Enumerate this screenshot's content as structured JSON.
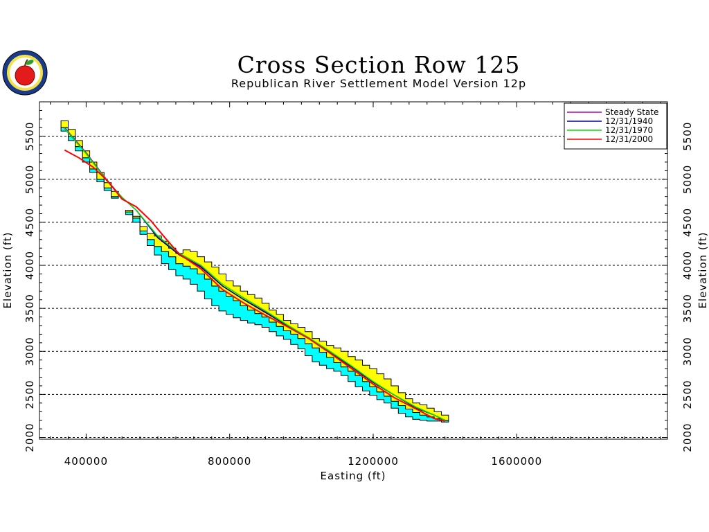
{
  "chart_data": {
    "type": "line",
    "title": "Cross Section Row 125",
    "subtitle": "Republican River Settlement Model Version 12p",
    "xlabel": "Easting (ft)",
    "ylabel": "Elevation (ft)",
    "xlim": [
      270000,
      2020000
    ],
    "ylim": [
      1980000,
      5900000
    ],
    "x_ticks": [
      400000,
      800000,
      1200000,
      1600000
    ],
    "y_ticks": [
      2000,
      2500,
      3000,
      3500,
      4000,
      4500,
      5000,
      5500
    ],
    "grid": "horizontal-dashed",
    "legend_position": "top-right",
    "colors": {
      "layer_top": "#ffff00",
      "layer_bottom": "#00ffff",
      "outline": "#000000"
    },
    "layers": {
      "x": [
        340000,
        360000,
        380000,
        400000,
        420000,
        440000,
        460000,
        480000,
        500000,
        520000,
        540000,
        560000,
        580000,
        600000,
        620000,
        640000,
        660000,
        680000,
        700000,
        720000,
        740000,
        760000,
        780000,
        800000,
        820000,
        840000,
        860000,
        880000,
        900000,
        920000,
        940000,
        960000,
        980000,
        1000000,
        1020000,
        1040000,
        1060000,
        1080000,
        1100000,
        1120000,
        1140000,
        1160000,
        1180000,
        1200000,
        1220000,
        1240000,
        1260000,
        1280000,
        1300000,
        1320000,
        1340000,
        1360000,
        1380000,
        1400000
      ],
      "top": [
        5680,
        5580,
        5450,
        5330,
        5200,
        5080,
        4960,
        4860,
        null,
        4640,
        4570,
        4450,
        4370,
        4340,
        4280,
        4200,
        4140,
        4180,
        4160,
        4100,
        4040,
        3980,
        3900,
        3820,
        3760,
        3700,
        3660,
        3620,
        3560,
        3480,
        3430,
        3360,
        3320,
        3280,
        3230,
        3150,
        3120,
        3070,
        3040,
        3000,
        2940,
        2900,
        2840,
        2800,
        2740,
        2680,
        2600,
        2520,
        2450,
        2400,
        2380,
        2340,
        2300,
        2260
      ],
      "mid": [
        5600,
        5500,
        5380,
        5250,
        5120,
        5000,
        4900,
        4800,
        null,
        4620,
        4550,
        4400,
        4300,
        4220,
        4160,
        4100,
        4020,
        3990,
        3960,
        3900,
        3840,
        3760,
        3700,
        3640,
        3590,
        3530,
        3480,
        3440,
        3400,
        3340,
        3290,
        3240,
        3200,
        3150,
        3090,
        3040,
        2990,
        2930,
        2870,
        2820,
        2770,
        2720,
        2650,
        2590,
        2530,
        2480,
        2420,
        2370,
        2330,
        2290,
        2260,
        2240,
        2220,
        2200
      ],
      "bottom": [
        5560,
        5450,
        5330,
        5200,
        5080,
        4970,
        4870,
        4780,
        null,
        4590,
        4500,
        4360,
        4230,
        4120,
        4020,
        3950,
        3880,
        3840,
        3780,
        3700,
        3610,
        3530,
        3470,
        3430,
        3390,
        3360,
        3330,
        3310,
        3280,
        3230,
        3180,
        3140,
        3080,
        3030,
        2950,
        2880,
        2840,
        2800,
        2770,
        2720,
        2650,
        2590,
        2540,
        2490,
        2440,
        2400,
        2340,
        2280,
        2240,
        2210,
        2200,
        2190,
        2190,
        2180
      ]
    },
    "series": [
      {
        "name": "Steady State",
        "color": "#b000b0",
        "x": [
          340000,
          400000,
          460000,
          500000,
          540000,
          600000,
          660000,
          720000,
          780000,
          840000,
          900000,
          960000,
          1020000,
          1080000,
          1140000,
          1200000,
          1260000,
          1320000,
          1370000,
          1400000
        ],
        "y": [
          5600,
          5310,
          4980,
          4790,
          4640,
          4330,
          4130,
          3990,
          3760,
          3600,
          3460,
          3300,
          3160,
          2990,
          2820,
          2640,
          2490,
          2350,
          2260,
          2200
        ]
      },
      {
        "name": "12/31/1940",
        "color": "#0000a0",
        "x": [
          340000,
          400000,
          460000,
          500000,
          540000,
          600000,
          660000,
          720000,
          780000,
          840000,
          900000,
          960000,
          1020000,
          1080000,
          1140000,
          1200000,
          1260000,
          1320000,
          1370000,
          1400000
        ],
        "y": [
          5590,
          5300,
          4970,
          4790,
          4640,
          4320,
          4120,
          3980,
          3760,
          3600,
          3450,
          3300,
          3150,
          2990,
          2820,
          2640,
          2490,
          2340,
          2260,
          2200
        ]
      },
      {
        "name": "12/31/1970",
        "color": "#00e000",
        "x": [
          340000,
          400000,
          460000,
          500000,
          540000,
          600000,
          660000,
          720000,
          780000,
          840000,
          900000,
          960000,
          1020000,
          1080000,
          1140000,
          1200000,
          1260000,
          1320000,
          1370000,
          1400000
        ],
        "y": [
          5590,
          5300,
          4970,
          4790,
          4640,
          4340,
          4140,
          4000,
          3780,
          3620,
          3470,
          3310,
          3160,
          3000,
          2830,
          2650,
          2490,
          2350,
          2260,
          2200
        ]
      },
      {
        "name": "12/31/2000",
        "color": "#ff0000",
        "x": [
          340000,
          380000,
          420000,
          460000,
          500000,
          540000,
          580000,
          620000,
          660000,
          720000,
          780000,
          840000,
          900000,
          960000,
          1020000,
          1080000,
          1140000,
          1200000,
          1260000,
          1320000,
          1370000,
          1400000
        ],
        "y": [
          5340,
          5250,
          5140,
          4980,
          4770,
          4680,
          4520,
          4320,
          4130,
          3960,
          3720,
          3560,
          3420,
          3290,
          3150,
          2980,
          2800,
          2620,
          2460,
          2330,
          2220,
          2190
        ]
      }
    ]
  }
}
